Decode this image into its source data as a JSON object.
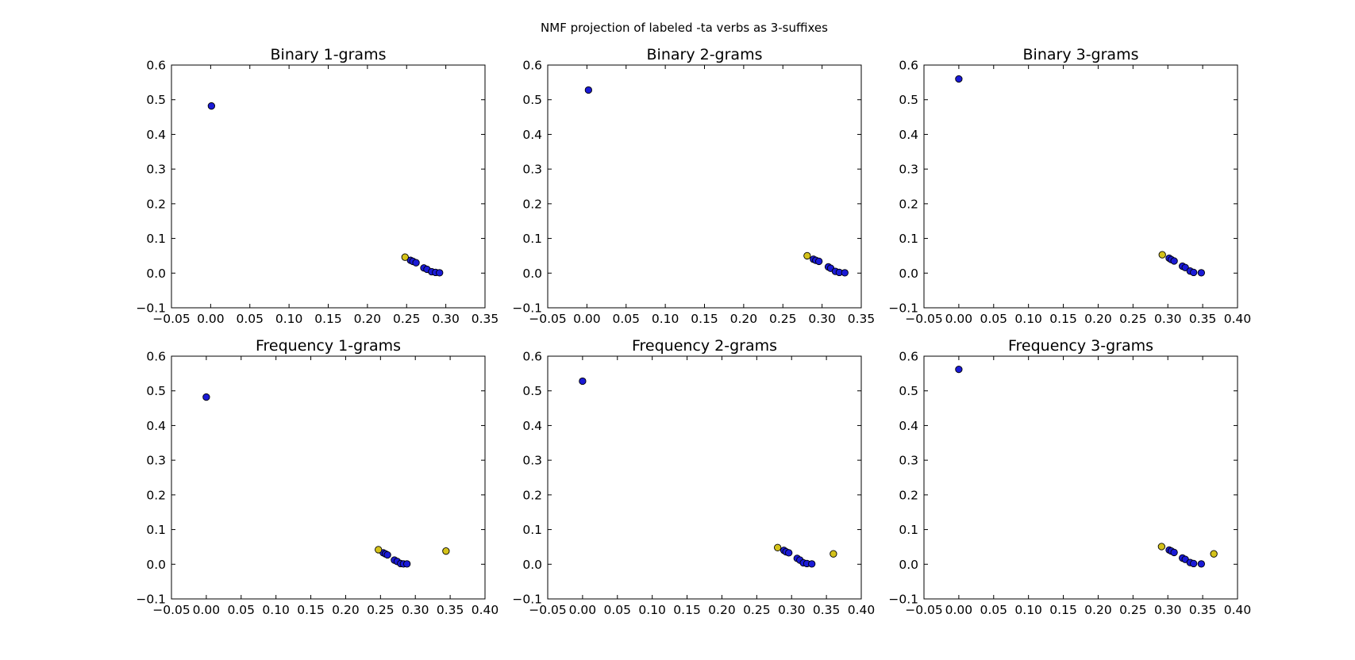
{
  "figure_title": "NMF projection of labeled -ta verbs as 3-suffixes",
  "colors": {
    "blue_point": "#1a1ad6",
    "yellow_point": "#d4c21a",
    "point_edge": "#000000",
    "axes": "#000000"
  },
  "chart_data": [
    {
      "type": "scatter",
      "title": "Binary 1-grams",
      "xlim": [
        -0.05,
        0.35
      ],
      "ylim": [
        -0.1,
        0.6
      ],
      "xticks": [
        "−0.05",
        "0.00",
        "0.05",
        "0.10",
        "0.15",
        "0.20",
        "0.25",
        "0.30",
        "0.35"
      ],
      "yticks": [
        "−0.1",
        "0.0",
        "0.1",
        "0.2",
        "0.3",
        "0.4",
        "0.5",
        "0.6"
      ],
      "series": [
        {
          "color": "#1a1ad6",
          "points": [
            [
              0.001,
              0.482
            ],
            [
              0.255,
              0.037
            ],
            [
              0.258,
              0.034
            ],
            [
              0.262,
              0.03
            ],
            [
              0.272,
              0.015
            ],
            [
              0.276,
              0.011
            ],
            [
              0.282,
              0.004
            ],
            [
              0.287,
              0.002
            ],
            [
              0.292,
              0.001
            ]
          ]
        },
        {
          "color": "#d4c21a",
          "points": [
            [
              0.248,
              0.046
            ]
          ]
        }
      ]
    },
    {
      "type": "scatter",
      "title": "Binary 2-grams",
      "xlim": [
        -0.05,
        0.35
      ],
      "ylim": [
        -0.1,
        0.6
      ],
      "xticks": [
        "−0.05",
        "0.00",
        "0.05",
        "0.10",
        "0.15",
        "0.20",
        "0.25",
        "0.30",
        "0.35"
      ],
      "yticks": [
        "−0.1",
        "0.0",
        "0.1",
        "0.2",
        "0.3",
        "0.4",
        "0.5",
        "0.6"
      ],
      "series": [
        {
          "color": "#1a1ad6",
          "points": [
            [
              0.002,
              0.528
            ],
            [
              0.289,
              0.04
            ],
            [
              0.292,
              0.037
            ],
            [
              0.296,
              0.034
            ],
            [
              0.308,
              0.018
            ],
            [
              0.311,
              0.014
            ],
            [
              0.317,
              0.005
            ],
            [
              0.322,
              0.002
            ],
            [
              0.329,
              0.001
            ]
          ]
        },
        {
          "color": "#d4c21a",
          "points": [
            [
              0.281,
              0.05
            ]
          ]
        }
      ]
    },
    {
      "type": "scatter",
      "title": "Binary 3-grams",
      "xlim": [
        -0.05,
        0.4
      ],
      "ylim": [
        -0.1,
        0.6
      ],
      "xticks": [
        "−0.05",
        "0.00",
        "0.05",
        "0.10",
        "0.15",
        "0.20",
        "0.25",
        "0.30",
        "0.35",
        "0.40"
      ],
      "yticks": [
        "−0.1",
        "0.0",
        "0.1",
        "0.2",
        "0.3",
        "0.4",
        "0.5",
        "0.6"
      ],
      "series": [
        {
          "color": "#1a1ad6",
          "points": [
            [
              0.0,
              0.56
            ],
            [
              0.302,
              0.043
            ],
            [
              0.305,
              0.039
            ],
            [
              0.309,
              0.035
            ],
            [
              0.321,
              0.02
            ],
            [
              0.325,
              0.016
            ],
            [
              0.332,
              0.006
            ],
            [
              0.337,
              0.002
            ],
            [
              0.348,
              0.001
            ]
          ]
        },
        {
          "color": "#d4c21a",
          "points": [
            [
              0.292,
              0.053
            ]
          ]
        }
      ]
    },
    {
      "type": "scatter",
      "title": "Frequency 1-grams",
      "xlim": [
        -0.05,
        0.4
      ],
      "ylim": [
        -0.1,
        0.6
      ],
      "xticks": [
        "−0.05",
        "0.00",
        "0.05",
        "0.10",
        "0.15",
        "0.20",
        "0.25",
        "0.30",
        "0.35",
        "0.40"
      ],
      "yticks": [
        "−0.1",
        "0.0",
        "0.1",
        "0.2",
        "0.3",
        "0.4",
        "0.5",
        "0.6"
      ],
      "series": [
        {
          "color": "#1a1ad6",
          "points": [
            [
              0.0,
              0.482
            ],
            [
              0.254,
              0.033
            ],
            [
              0.257,
              0.03
            ],
            [
              0.26,
              0.027
            ],
            [
              0.27,
              0.012
            ],
            [
              0.274,
              0.008
            ],
            [
              0.279,
              0.002
            ],
            [
              0.283,
              0.001
            ],
            [
              0.288,
              0.001
            ]
          ]
        },
        {
          "color": "#d4c21a",
          "points": [
            [
              0.247,
              0.042
            ],
            [
              0.344,
              0.038
            ]
          ]
        }
      ]
    },
    {
      "type": "scatter",
      "title": "Frequency 2-grams",
      "xlim": [
        -0.05,
        0.4
      ],
      "ylim": [
        -0.1,
        0.6
      ],
      "xticks": [
        "−0.05",
        "0.00",
        "0.05",
        "0.10",
        "0.15",
        "0.20",
        "0.25",
        "0.30",
        "0.35",
        "0.40"
      ],
      "yticks": [
        "−0.1",
        "0.0",
        "0.1",
        "0.2",
        "0.3",
        "0.4",
        "0.5",
        "0.6"
      ],
      "series": [
        {
          "color": "#1a1ad6",
          "points": [
            [
              0.0,
              0.528
            ],
            [
              0.289,
              0.04
            ],
            [
              0.292,
              0.036
            ],
            [
              0.296,
              0.033
            ],
            [
              0.308,
              0.017
            ],
            [
              0.312,
              0.012
            ],
            [
              0.317,
              0.004
            ],
            [
              0.322,
              0.002
            ],
            [
              0.329,
              0.001
            ]
          ]
        },
        {
          "color": "#d4c21a",
          "points": [
            [
              0.28,
              0.048
            ],
            [
              0.36,
              0.03
            ]
          ]
        }
      ]
    },
    {
      "type": "scatter",
      "title": "Frequency 3-grams",
      "xlim": [
        -0.05,
        0.4
      ],
      "ylim": [
        -0.1,
        0.6
      ],
      "xticks": [
        "−0.05",
        "0.00",
        "0.05",
        "0.10",
        "0.15",
        "0.20",
        "0.25",
        "0.30",
        "0.35",
        "0.40"
      ],
      "yticks": [
        "−0.1",
        "0.0",
        "0.1",
        "0.2",
        "0.3",
        "0.4",
        "0.5",
        "0.6"
      ],
      "series": [
        {
          "color": "#1a1ad6",
          "points": [
            [
              0.0,
              0.562
            ],
            [
              0.302,
              0.041
            ],
            [
              0.305,
              0.038
            ],
            [
              0.309,
              0.034
            ],
            [
              0.321,
              0.018
            ],
            [
              0.325,
              0.014
            ],
            [
              0.332,
              0.005
            ],
            [
              0.337,
              0.002
            ],
            [
              0.348,
              0.001
            ]
          ]
        },
        {
          "color": "#d4c21a",
          "points": [
            [
              0.291,
              0.051
            ],
            [
              0.366,
              0.03
            ]
          ]
        }
      ]
    }
  ]
}
